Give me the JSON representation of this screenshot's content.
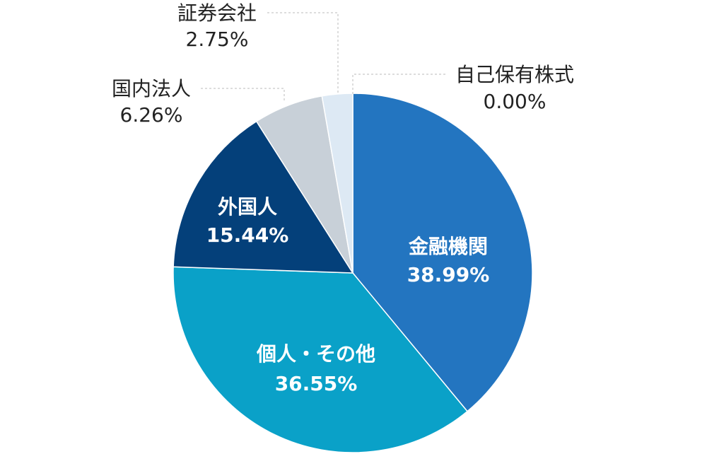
{
  "chart_data": {
    "type": "pie",
    "slices": [
      {
        "label": "金融機関",
        "value_text": "38.99%",
        "value": 38.99,
        "color": "#2375c0"
      },
      {
        "label": "個人・その他",
        "value_text": "36.55%",
        "value": 36.55,
        "color": "#0aa1c8"
      },
      {
        "label": "外国人",
        "value_text": "15.44%",
        "value": 15.44,
        "color": "#04407a"
      },
      {
        "label": "国内法人",
        "value_text": "6.26%",
        "value": 6.26,
        "color": "#c8d0d8"
      },
      {
        "label": "証券会社",
        "value_text": "2.75%",
        "value": 2.75,
        "color": "#dde9f4"
      },
      {
        "label": "自己保有株式",
        "value_text": "0.00%",
        "value": 0.0,
        "color": "#a9c9e4"
      }
    ]
  }
}
